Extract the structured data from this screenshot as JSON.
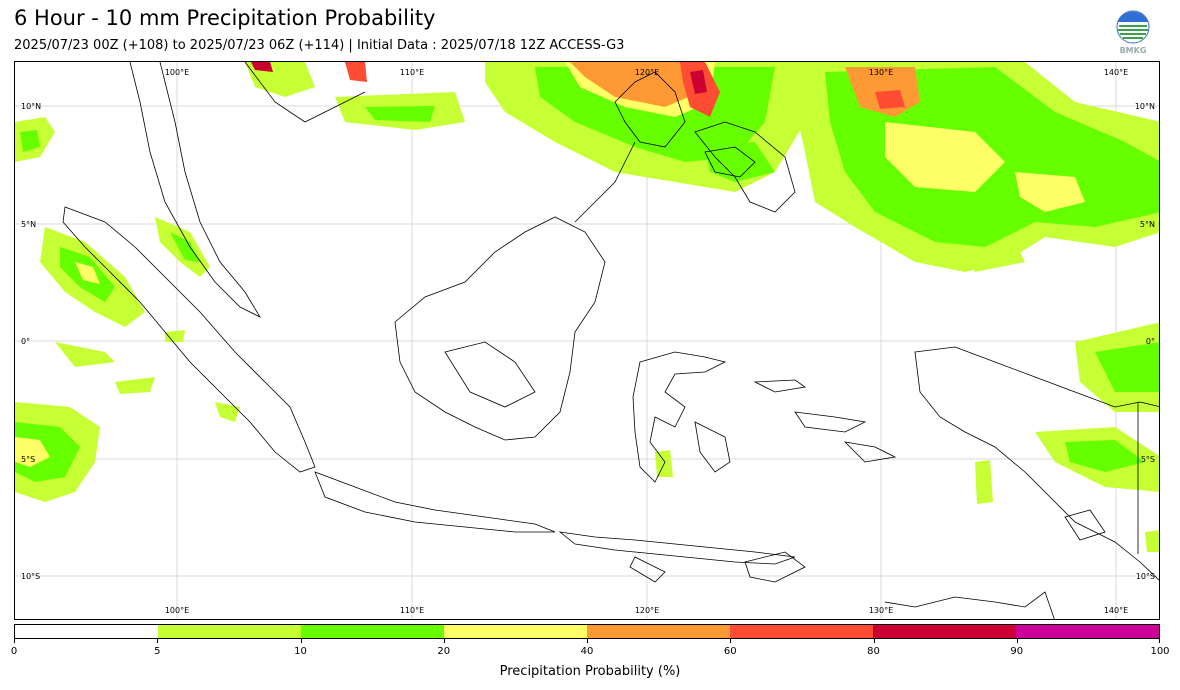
{
  "header": {
    "title": "6 Hour - 10 mm Precipitation Probability",
    "subtitle": "2025/07/23 00Z (+108) to 2025/07/23 06Z (+114) | Initial Data : 2025/07/18 12Z ACCESS-G3",
    "logo_text": "BMKG"
  },
  "map": {
    "lon_labels": [
      "100°E",
      "110°E",
      "120°E",
      "130°E",
      "140°E"
    ],
    "lat_labels": [
      "10°N",
      "5°N",
      "0°",
      "5°S",
      "10°S"
    ]
  },
  "colorbar": {
    "title": "Precipitation Probability (%)",
    "ticks": [
      "0",
      "5",
      "10",
      "20",
      "40",
      "60",
      "80",
      "90",
      "100"
    ],
    "colors": [
      "#ffffff",
      "#c6ff33",
      "#66ff00",
      "#ffff66",
      "#ff9933",
      "#ff4d33",
      "#cc0033",
      "#cc0099"
    ]
  }
}
